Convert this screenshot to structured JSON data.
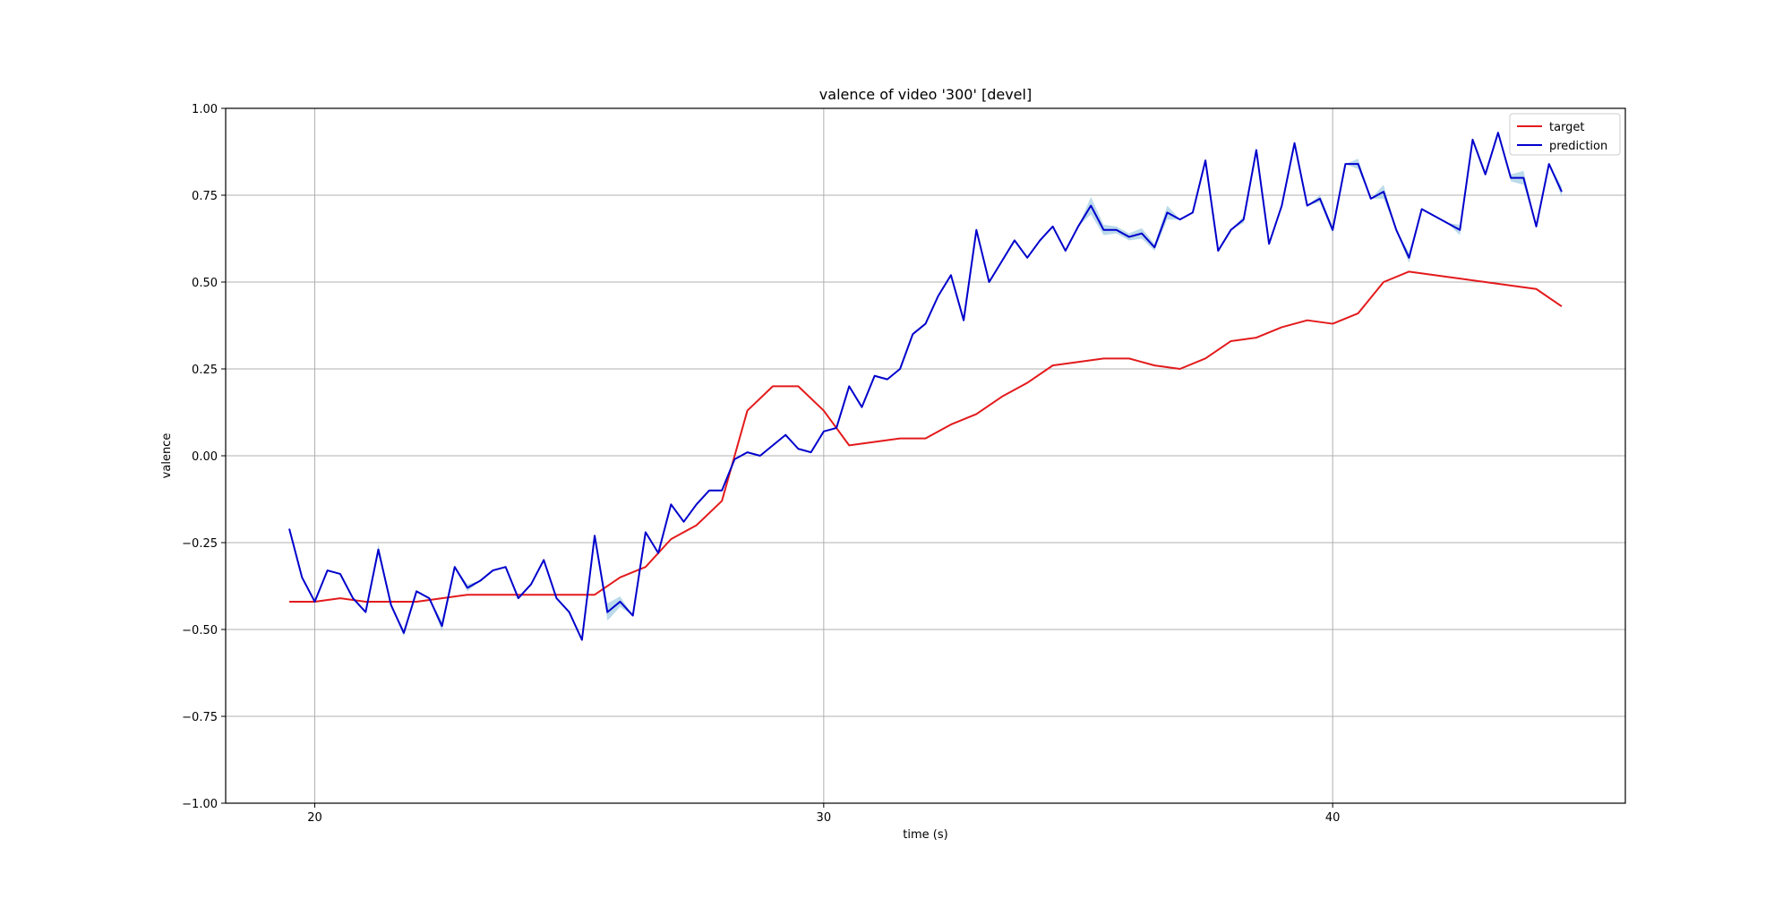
{
  "chart_data": {
    "type": "line",
    "title": "valence of video '300' [devel]",
    "xlabel": "time (s)",
    "ylabel": "valence",
    "xlim": [
      18.25,
      45.75
    ],
    "ylim": [
      -1.0,
      1.0
    ],
    "xticks": [
      20,
      30,
      40
    ],
    "xtick_labels": [
      "20",
      "30",
      "40"
    ],
    "yticks": [
      -1.0,
      -0.75,
      -0.5,
      -0.25,
      0.0,
      0.25,
      0.5,
      0.75,
      1.0
    ],
    "ytick_labels": [
      "−1.00",
      "−0.75",
      "−0.50",
      "−0.25",
      "0.00",
      "0.25",
      "0.50",
      "0.75",
      "1.00"
    ],
    "grid": true,
    "legend_position": "top-right",
    "band_color": "#9ecae1",
    "series": [
      {
        "name": "target",
        "color": "#e31a1c",
        "x": [
          19.5,
          20.0,
          20.5,
          21.0,
          21.5,
          22.0,
          22.5,
          23.0,
          23.5,
          24.0,
          24.5,
          25.0,
          25.5,
          26.0,
          26.5,
          27.0,
          27.5,
          28.0,
          28.5,
          29.0,
          29.5,
          30.0,
          30.5,
          31.0,
          31.5,
          32.0,
          32.5,
          33.0,
          33.5,
          34.0,
          34.5,
          35.0,
          35.5,
          36.0,
          36.5,
          37.0,
          37.5,
          38.0,
          38.5,
          39.0,
          39.5,
          40.0,
          40.5,
          41.0,
          41.5,
          42.0,
          42.5,
          43.0,
          43.5,
          44.0,
          44.5
        ],
        "y": [
          -0.42,
          -0.42,
          -0.41,
          -0.42,
          -0.42,
          -0.42,
          -0.41,
          -0.4,
          -0.4,
          -0.4,
          -0.4,
          -0.4,
          -0.4,
          -0.35,
          -0.32,
          -0.24,
          -0.2,
          -0.13,
          0.13,
          0.2,
          0.2,
          0.13,
          0.03,
          0.04,
          0.05,
          0.05,
          0.09,
          0.12,
          0.17,
          0.21,
          0.26,
          0.27,
          0.28,
          0.28,
          0.26,
          0.25,
          0.28,
          0.33,
          0.34,
          0.37,
          0.39,
          0.38,
          0.41,
          0.5,
          0.53,
          0.52,
          0.51,
          0.5,
          0.49,
          0.48,
          0.43
        ]
      },
      {
        "name": "prediction",
        "color": "#0000cc",
        "x": [
          19.5,
          19.75,
          20.0,
          20.25,
          20.5,
          20.75,
          21.0,
          21.25,
          21.5,
          21.75,
          22.0,
          22.25,
          22.5,
          22.75,
          23.0,
          23.25,
          23.5,
          23.75,
          24.0,
          24.25,
          24.5,
          24.75,
          25.0,
          25.25,
          25.5,
          25.75,
          26.0,
          26.25,
          26.5,
          26.75,
          27.0,
          27.25,
          27.5,
          27.75,
          28.0,
          28.25,
          28.5,
          28.75,
          29.0,
          29.25,
          29.5,
          29.75,
          30.0,
          30.25,
          30.5,
          30.75,
          31.0,
          31.25,
          31.5,
          31.75,
          32.0,
          32.25,
          32.5,
          32.75,
          33.0,
          33.25,
          33.5,
          33.75,
          34.0,
          34.25,
          34.5,
          34.75,
          35.0,
          35.25,
          35.5,
          35.75,
          36.0,
          36.25,
          36.5,
          36.75,
          37.0,
          37.25,
          37.5,
          37.75,
          38.0,
          38.25,
          38.5,
          38.75,
          39.0,
          39.25,
          39.5,
          39.75,
          40.0,
          40.25,
          40.5,
          40.75,
          41.0,
          41.25,
          41.5,
          41.75,
          42.0,
          42.25,
          42.5,
          42.75,
          43.0,
          43.25,
          43.5,
          43.75,
          44.0,
          44.25,
          44.5
        ],
        "y": [
          -0.21,
          -0.35,
          -0.42,
          -0.33,
          -0.34,
          -0.41,
          -0.45,
          -0.27,
          -0.43,
          -0.51,
          -0.39,
          -0.41,
          -0.49,
          -0.32,
          -0.38,
          -0.36,
          -0.33,
          -0.32,
          -0.41,
          -0.37,
          -0.3,
          -0.41,
          -0.45,
          -0.53,
          -0.23,
          -0.45,
          -0.42,
          -0.46,
          -0.22,
          -0.28,
          -0.14,
          -0.19,
          -0.14,
          -0.1,
          -0.1,
          -0.01,
          0.01,
          0.0,
          0.03,
          0.06,
          0.02,
          0.01,
          0.07,
          0.08,
          0.2,
          0.14,
          0.23,
          0.22,
          0.25,
          0.35,
          0.38,
          0.46,
          0.52,
          0.39,
          0.65,
          0.5,
          0.56,
          0.62,
          0.57,
          0.62,
          0.66,
          0.59,
          0.66,
          0.72,
          0.65,
          0.65,
          0.63,
          0.64,
          0.6,
          0.7,
          0.68,
          0.7,
          0.85,
          0.59,
          0.65,
          0.68,
          0.88,
          0.61,
          0.72,
          0.9,
          0.72,
          0.74,
          0.65,
          0.84,
          0.84,
          0.74,
          0.76,
          0.65,
          0.57,
          0.71,
          0.69,
          0.67,
          0.65,
          0.91,
          0.81,
          0.93,
          0.8,
          0.8,
          0.66,
          0.84,
          0.76
        ],
        "band_width": [
          0.0,
          0.0,
          0.0,
          0.0,
          0.0,
          0.0,
          0.0,
          0.03,
          0.0,
          0.02,
          0.0,
          0.0,
          0.03,
          0.0,
          0.02,
          0.0,
          0.0,
          0.0,
          0.0,
          0.0,
          0.0,
          0.0,
          0.0,
          0.0,
          0.0,
          0.05,
          0.03,
          0.0,
          0.0,
          0.0,
          0.0,
          0.0,
          0.0,
          0.0,
          0.0,
          0.0,
          0.0,
          0.0,
          0.0,
          0.0,
          0.0,
          0.0,
          0.0,
          0.0,
          0.0,
          0.0,
          0.0,
          0.0,
          0.0,
          0.0,
          0.0,
          0.0,
          0.0,
          0.0,
          0.0,
          0.0,
          0.0,
          0.0,
          0.0,
          0.0,
          0.0,
          0.0,
          0.0,
          0.05,
          0.03,
          0.02,
          0.02,
          0.03,
          0.02,
          0.04,
          0.0,
          0.0,
          0.0,
          0.0,
          0.0,
          0.02,
          0.0,
          0.0,
          0.0,
          0.0,
          0.0,
          0.02,
          0.02,
          0.0,
          0.03,
          0.0,
          0.04,
          0.0,
          0.03,
          0.0,
          0.0,
          0.0,
          0.03,
          0.0,
          0.0,
          0.0,
          0.02,
          0.04,
          0.0,
          0.0,
          0.03
        ]
      }
    ]
  }
}
